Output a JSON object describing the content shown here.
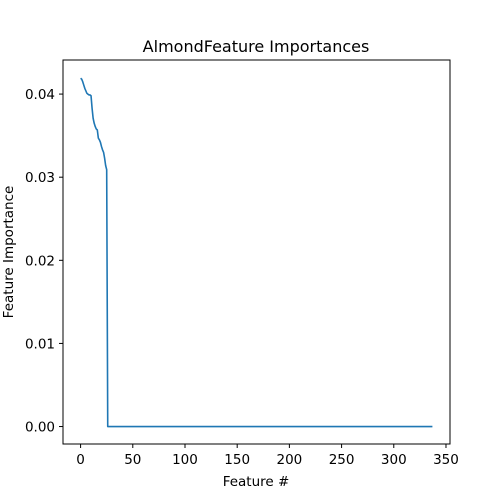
{
  "chart_data": {
    "type": "line",
    "title": "AlmondFeature Importances",
    "xlabel": "Feature #",
    "ylabel": "Feature Importance",
    "xlim": [
      -16.85,
      353.85
    ],
    "ylim": [
      -0.0021,
      0.0441
    ],
    "x_ticks": [
      0,
      50,
      100,
      150,
      200,
      250,
      300,
      350
    ],
    "y_ticks": [
      0.0,
      0.01,
      0.02,
      0.03,
      0.04
    ],
    "x_tick_labels": [
      "0",
      "50",
      "100",
      "150",
      "200",
      "250",
      "300",
      "350"
    ],
    "y_tick_labels": [
      "0.00",
      "0.01",
      "0.02",
      "0.03",
      "0.04"
    ],
    "grid": false,
    "series": [
      {
        "color": "#1f77b4",
        "x": [
          0,
          1,
          2,
          3,
          4,
          5,
          6,
          7,
          8,
          9,
          10,
          11,
          12,
          13,
          14,
          15,
          16,
          17,
          18,
          19,
          20,
          21,
          22,
          23,
          24,
          25,
          26,
          27,
          337
        ],
        "y": [
          0.0419,
          0.0418,
          0.0415,
          0.0411,
          0.0407,
          0.0404,
          0.0401,
          0.04,
          0.0399,
          0.0399,
          0.0398,
          0.0383,
          0.0371,
          0.0365,
          0.0361,
          0.0358,
          0.0357,
          0.0347,
          0.0345,
          0.0342,
          0.0337,
          0.0333,
          0.033,
          0.0323,
          0.0314,
          0.0309,
          0.0,
          0.0,
          0.0
        ]
      }
    ]
  }
}
